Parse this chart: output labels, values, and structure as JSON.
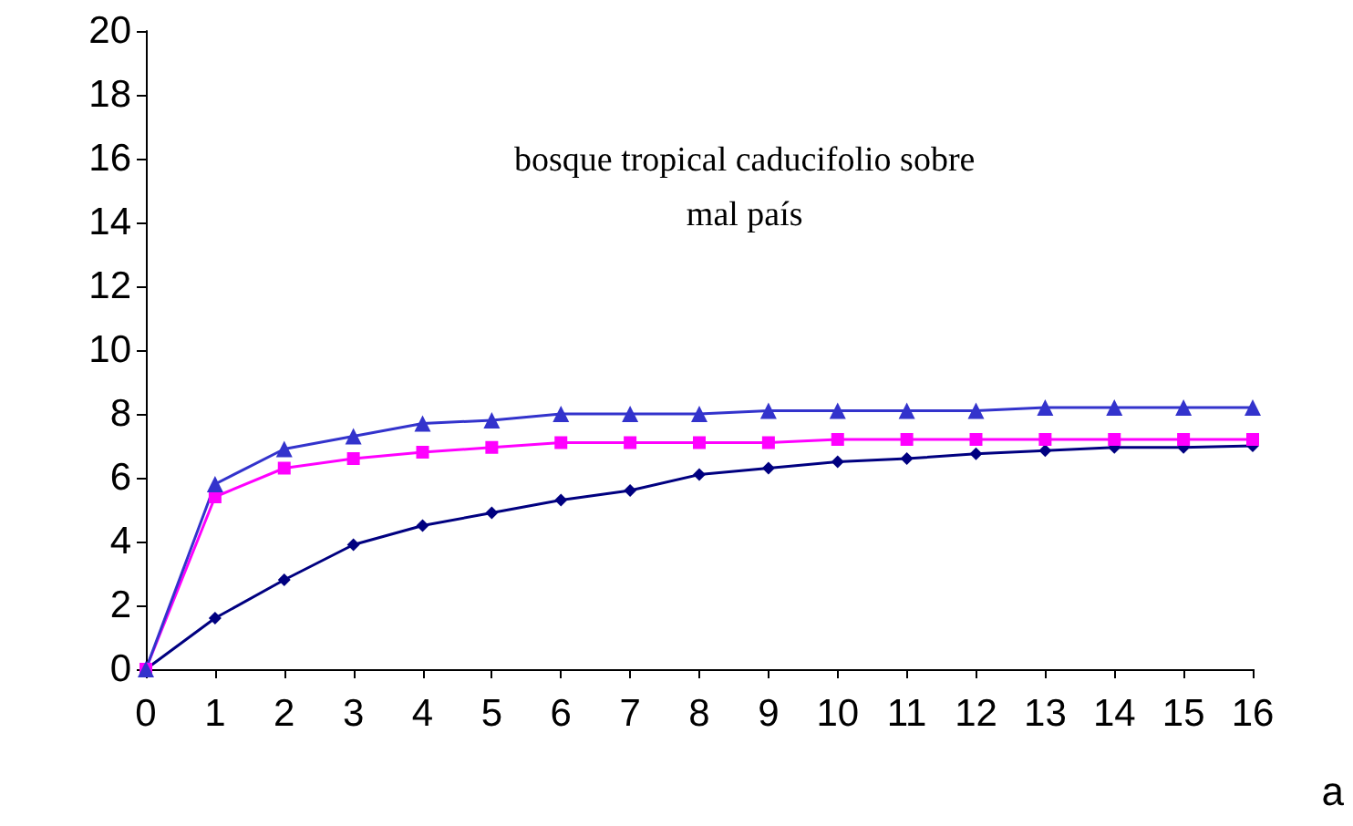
{
  "chart_data": {
    "type": "line",
    "categories": [
      "0",
      "1",
      "2",
      "3",
      "4",
      "5",
      "6",
      "7",
      "8",
      "9",
      "10",
      "11",
      "12",
      "13",
      "14",
      "15",
      "16"
    ],
    "series": [
      {
        "color": "#000080",
        "marker": "diamond",
        "values": [
          0,
          1.6,
          2.8,
          3.9,
          4.5,
          4.9,
          5.3,
          5.6,
          6.1,
          6.3,
          6.5,
          6.6,
          6.75,
          6.85,
          6.95,
          6.95,
          7.0
        ]
      },
      {
        "color": "#ff00ff",
        "marker": "square",
        "values": [
          0,
          5.4,
          6.3,
          6.6,
          6.8,
          6.95,
          7.1,
          7.1,
          7.1,
          7.1,
          7.2,
          7.2,
          7.2,
          7.2,
          7.2,
          7.2,
          7.2
        ]
      },
      {
        "color": "#3333cc",
        "marker": "triangle",
        "values": [
          0,
          5.8,
          6.9,
          7.3,
          7.7,
          7.8,
          8.0,
          8.0,
          8.0,
          8.1,
          8.1,
          8.1,
          8.1,
          8.2,
          8.2,
          8.2,
          8.2
        ]
      }
    ],
    "ylim": [
      0,
      20
    ],
    "yticks": [
      0,
      2,
      4,
      6,
      8,
      10,
      12,
      14,
      16,
      18,
      20
    ],
    "grid": false,
    "annotations": [
      "bosque tropical caducifolio sobre\nmal país",
      "a"
    ]
  }
}
